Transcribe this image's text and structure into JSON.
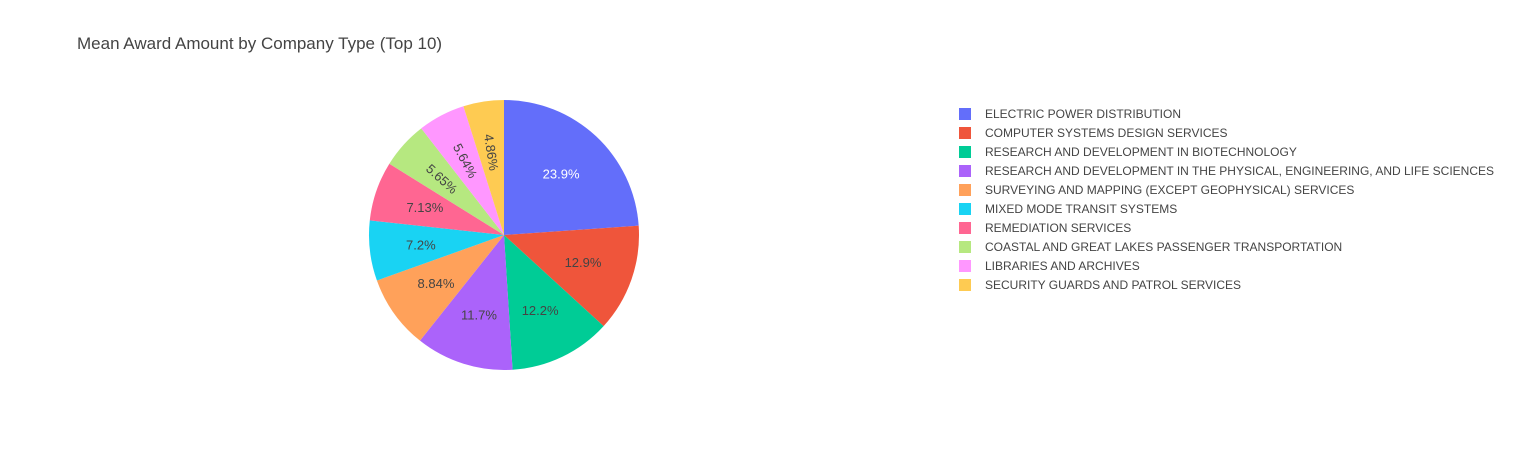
{
  "chart_data": {
    "type": "pie",
    "title": "Mean Award Amount by Company Type (Top 10)",
    "direction": "clockwise",
    "start_angle": "12 o'clock",
    "legend_position": "right",
    "slices": [
      {
        "label": "ELECTRIC POWER DISTRIBUTION",
        "percent": 23.9,
        "percent_text": "23.9%",
        "color": "#636efa",
        "label_color": "#ffffff"
      },
      {
        "label": "COMPUTER SYSTEMS DESIGN SERVICES",
        "percent": 12.9,
        "percent_text": "12.9%",
        "color": "#ef553b",
        "label_color": "#444444"
      },
      {
        "label": "RESEARCH AND DEVELOPMENT IN BIOTECHNOLOGY",
        "percent": 12.2,
        "percent_text": "12.2%",
        "color": "#00cc96",
        "label_color": "#444444"
      },
      {
        "label": "RESEARCH AND DEVELOPMENT IN THE PHYSICAL, ENGINEERING, AND LIFE SCIENCES",
        "percent": 11.7,
        "percent_text": "11.7%",
        "color": "#ab63fa",
        "label_color": "#444444"
      },
      {
        "label": "SURVEYING AND MAPPING (EXCEPT GEOPHYSICAL) SERVICES",
        "percent": 8.84,
        "percent_text": "8.84%",
        "color": "#ffa15a",
        "label_color": "#444444"
      },
      {
        "label": "MIXED MODE TRANSIT SYSTEMS",
        "percent": 7.2,
        "percent_text": "7.2%",
        "color": "#19d3f3",
        "label_color": "#444444"
      },
      {
        "label": "REMEDIATION SERVICES",
        "percent": 7.13,
        "percent_text": "7.13%",
        "color": "#ff6692",
        "label_color": "#444444"
      },
      {
        "label": "COASTAL AND GREAT LAKES PASSENGER TRANSPORTATION",
        "percent": 5.65,
        "percent_text": "5.65%",
        "color": "#b6e880",
        "label_color": "#444444"
      },
      {
        "label": "LIBRARIES AND ARCHIVES",
        "percent": 5.64,
        "percent_text": "5.64%",
        "color": "#ff97ff",
        "label_color": "#444444"
      },
      {
        "label": "SECURITY GUARDS AND PATROL SERVICES",
        "percent": 4.86,
        "percent_text": "4.86%",
        "color": "#fecb52",
        "label_color": "#444444"
      }
    ]
  }
}
